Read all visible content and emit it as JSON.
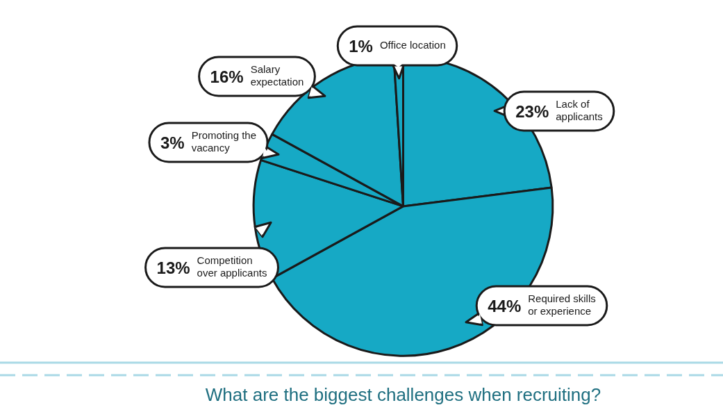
{
  "chart_data": {
    "type": "pie",
    "title": "What are the biggest challenges when recruiting?",
    "categories": [
      "Lack of applicants",
      "Required skills or experience",
      "Competition over applicants",
      "Promoting the vacancy",
      "Salary expectation",
      "Office location"
    ],
    "values": [
      23,
      44,
      13,
      3,
      16,
      1
    ],
    "value_labels": [
      "23%",
      "44%",
      "13%",
      "3%",
      "16%",
      "1%"
    ],
    "color": "#16a9c5",
    "data_labels": true
  }
}
